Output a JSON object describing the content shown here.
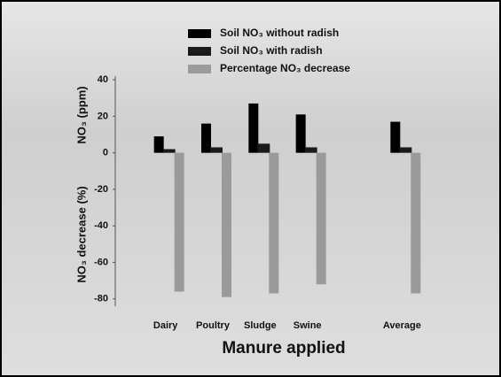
{
  "chart_data": {
    "type": "bar",
    "x_label": "Manure applied",
    "y_label_upper": "NO₃ (ppm)",
    "y_label_lower": "NO₃ decrease (%)",
    "categories": [
      "Dairy",
      "Poultry",
      "Sludge",
      "Swine",
      null,
      "Average"
    ],
    "series": [
      {
        "name": "Soil NO₃ without radish",
        "color": "#000000",
        "values": [
          9,
          16,
          27,
          21,
          null,
          17
        ]
      },
      {
        "name": "Soil NO₃ with radish",
        "color": "#1a1a1a",
        "values": [
          2,
          3,
          5,
          3,
          null,
          3
        ]
      },
      {
        "name": "Percentage NO₃ decrease",
        "color": "#9a9a9a",
        "values": [
          -76,
          -79,
          -77,
          -72,
          null,
          -77
        ]
      }
    ],
    "ylim": [
      -84,
      42
    ],
    "yticks": [
      -80,
      -60,
      -40,
      -20,
      0,
      20,
      40
    ],
    "legend": "top"
  }
}
